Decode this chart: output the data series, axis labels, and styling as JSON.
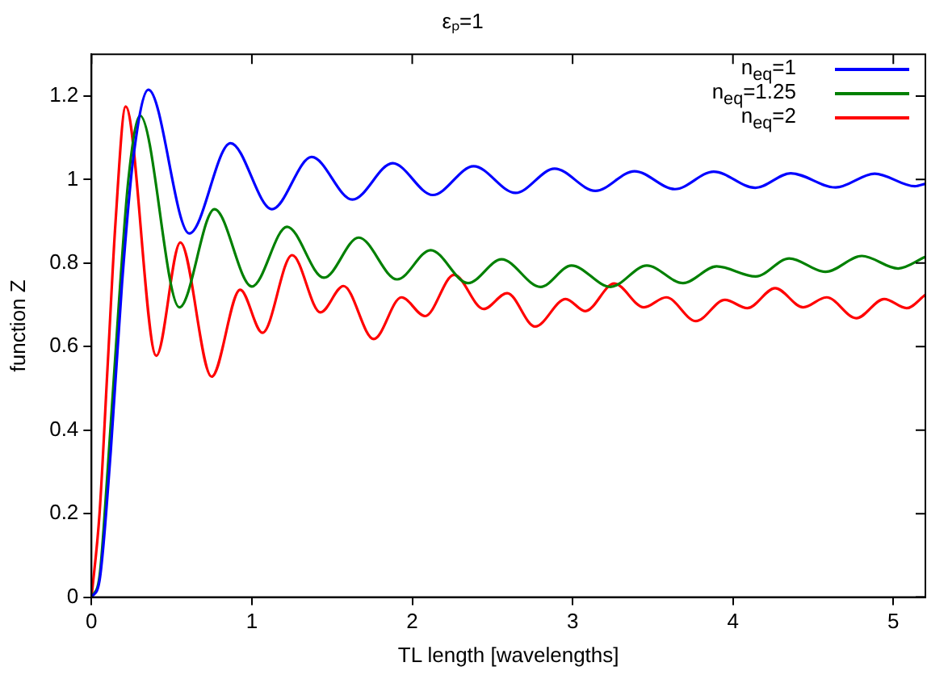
{
  "chart_data": {
    "type": "line",
    "title": "εₚ=1",
    "xlabel": "TL length [wavelengths]",
    "ylabel": "function Z",
    "xlim": [
      0,
      5.2
    ],
    "xticks": [
      0,
      1,
      2,
      3,
      4,
      5
    ],
    "ylim": [
      0,
      1.3
    ],
    "yticks": [
      0,
      0.2,
      0.4,
      0.6,
      0.8,
      1,
      1.2
    ],
    "grid": false,
    "legend": "top right",
    "marker": "none",
    "line_style": "solid",
    "series": [
      {
        "name": "n$_{eq}$=1",
        "color": "#0000ff",
        "x": [
          0,
          0.05,
          0.12,
          0.19,
          0.26,
          0.355,
          0.61,
          0.867,
          1.125,
          1.373,
          1.627,
          1.878,
          2.128,
          2.383,
          2.644,
          2.888,
          3.142,
          3.386,
          3.638,
          3.88,
          4.14,
          4.36,
          4.64,
          4.884,
          5.135,
          5.2
        ],
        "values": [
          0,
          0.04,
          0.35,
          0.75,
          1.05,
          1.215,
          0.871,
          1.087,
          0.929,
          1.054,
          0.952,
          1.039,
          0.963,
          1.032,
          0.968,
          1.026,
          0.973,
          1.02,
          0.977,
          1.019,
          0.98,
          1.015,
          0.981,
          1.014,
          0.984,
          0.99
        ]
      },
      {
        "name": "n$_{eq}$=1.25",
        "color": "#008000",
        "x": [
          0,
          0.05,
          0.1,
          0.17,
          0.23,
          0.303,
          0.548,
          0.767,
          1.0,
          1.219,
          1.449,
          1.666,
          1.906,
          2.115,
          2.348,
          2.557,
          2.8,
          2.993,
          3.236,
          3.463,
          3.689,
          3.898,
          4.142,
          4.351,
          4.577,
          4.804,
          5.03,
          5.2
        ],
        "values": [
          0,
          0.05,
          0.3,
          0.7,
          1.0,
          1.153,
          0.694,
          0.929,
          0.744,
          0.887,
          0.765,
          0.861,
          0.761,
          0.831,
          0.752,
          0.809,
          0.743,
          0.794,
          0.743,
          0.794,
          0.752,
          0.792,
          0.768,
          0.811,
          0.779,
          0.817,
          0.787,
          0.815
        ]
      },
      {
        "name": "n$_{eq}$=2",
        "color": "#ff0000",
        "x": [
          0,
          0.05,
          0.1,
          0.15,
          0.213,
          0.404,
          0.554,
          0.749,
          0.927,
          1.066,
          1.251,
          1.428,
          1.571,
          1.76,
          1.933,
          2.08,
          2.261,
          2.445,
          2.592,
          2.766,
          2.957,
          3.079,
          3.26,
          3.445,
          3.584,
          3.769,
          3.95,
          4.09,
          4.263,
          4.438,
          4.584,
          4.769,
          4.943,
          5.083,
          5.2
        ],
        "values": [
          0,
          0.2,
          0.55,
          0.9,
          1.175,
          0.578,
          0.849,
          0.528,
          0.736,
          0.633,
          0.819,
          0.682,
          0.745,
          0.618,
          0.718,
          0.673,
          0.772,
          0.69,
          0.728,
          0.648,
          0.714,
          0.685,
          0.751,
          0.694,
          0.718,
          0.661,
          0.712,
          0.692,
          0.74,
          0.694,
          0.718,
          0.668,
          0.714,
          0.692,
          0.724
        ]
      }
    ]
  }
}
